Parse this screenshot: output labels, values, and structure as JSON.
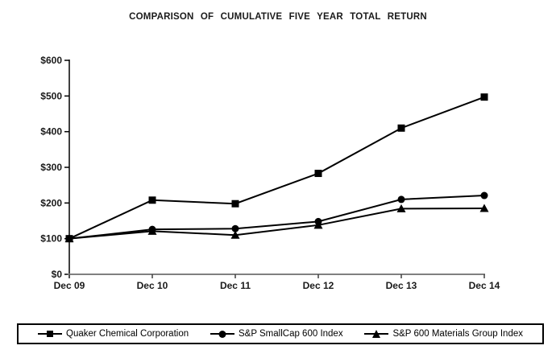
{
  "title": "COMPARISON OF CUMULATIVE FIVE YEAR TOTAL RETURN",
  "chart_data": {
    "type": "line",
    "title": "COMPARISON OF CUMULATIVE FIVE YEAR TOTAL RETURN",
    "categories": [
      "Dec 09",
      "Dec 10",
      "Dec 11",
      "Dec 12",
      "Dec 13",
      "Dec 14"
    ],
    "series": [
      {
        "name": "Quaker Chemical Corporation",
        "marker": "square",
        "values": [
          100,
          208,
          198,
          283,
          410,
          497
        ]
      },
      {
        "name": "S&P SmallCap 600 Index",
        "marker": "circle",
        "values": [
          100,
          126,
          128,
          148,
          210,
          221
        ]
      },
      {
        "name": "S&P 600 Materials Group Index",
        "marker": "triangle",
        "values": [
          100,
          121,
          110,
          138,
          184,
          185
        ]
      }
    ],
    "xlabel": "",
    "ylabel": "",
    "ylim": [
      0,
      600
    ],
    "y_ticks": [
      {
        "value": 0,
        "label": "$0"
      },
      {
        "value": 100,
        "label": "$100"
      },
      {
        "value": 200,
        "label": "$200"
      },
      {
        "value": 300,
        "label": "$300"
      },
      {
        "value": 400,
        "label": "$400"
      },
      {
        "value": 500,
        "label": "$500"
      },
      {
        "value": 600,
        "label": "$600"
      }
    ],
    "grid": false,
    "legend_position": "bottom",
    "line_color": "#000000",
    "x_axis_color": "#808080",
    "y_axis_color": "#000000",
    "tick_color": "#404040",
    "text_color": "#1a1a1a",
    "background_color": "#ffffff"
  }
}
